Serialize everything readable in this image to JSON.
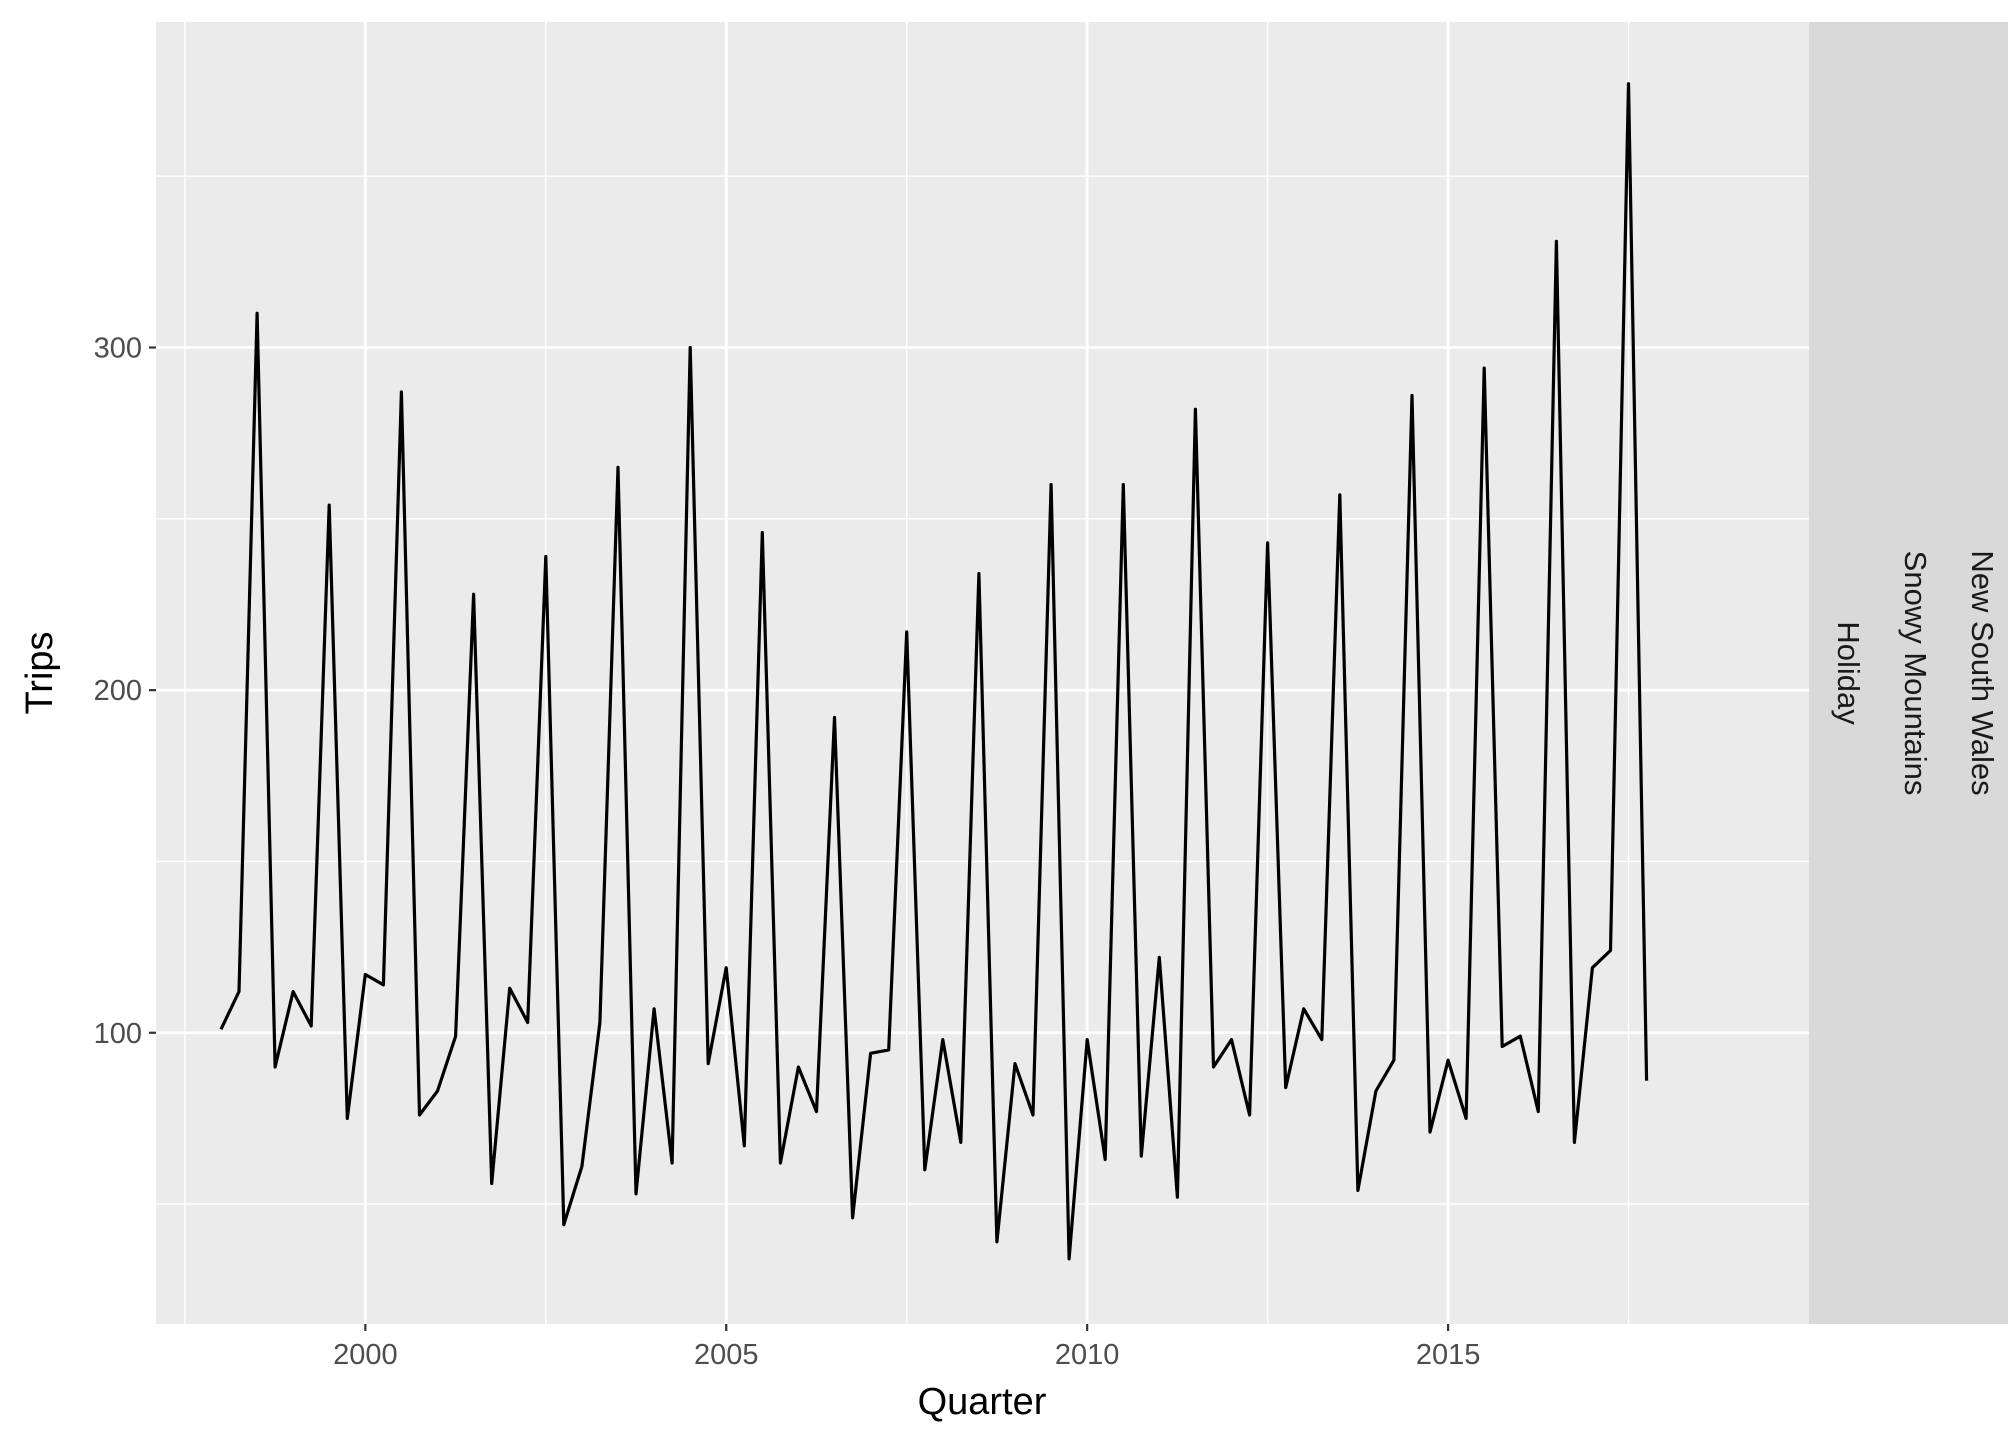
{
  "chart_data": {
    "type": "line",
    "xlabel": "Quarter",
    "ylabel": "Trips",
    "xlim": [
      1997.1,
      2020.0
    ],
    "ylim": [
      15,
      395
    ],
    "x_ticks": [
      2000,
      2005,
      2010,
      2015
    ],
    "y_ticks": [
      100,
      200,
      300
    ],
    "x_tick_labels": [
      "2000",
      "2005",
      "2010",
      "2015"
    ],
    "y_tick_labels": [
      "100",
      "200",
      "300"
    ],
    "grid": true,
    "facet_strip": [
      "New South Wales",
      "Snowy Mountains",
      "Holiday"
    ],
    "series": [
      {
        "x": [
          "1998 Q1",
          "1998 Q2",
          "1998 Q3",
          "1998 Q4",
          "1999 Q1",
          "1999 Q2",
          "1999 Q3",
          "1999 Q4",
          "2000 Q1",
          "2000 Q2",
          "2000 Q3",
          "2000 Q4",
          "2001 Q1",
          "2001 Q2",
          "2001 Q3",
          "2001 Q4",
          "2002 Q1",
          "2002 Q2",
          "2002 Q3",
          "2002 Q4",
          "2003 Q1",
          "2003 Q2",
          "2003 Q3",
          "2003 Q4",
          "2004 Q1",
          "2004 Q2",
          "2004 Q3",
          "2004 Q4",
          "2005 Q1",
          "2005 Q2",
          "2005 Q3",
          "2005 Q4",
          "2006 Q1",
          "2006 Q2",
          "2006 Q3",
          "2006 Q4",
          "2007 Q1",
          "2007 Q2",
          "2007 Q3",
          "2007 Q4",
          "2008 Q1",
          "2008 Q2",
          "2008 Q3",
          "2008 Q4",
          "2009 Q1",
          "2009 Q2",
          "2009 Q3",
          "2009 Q4",
          "2010 Q1",
          "2010 Q2",
          "2010 Q3",
          "2010 Q4",
          "2011 Q1",
          "2011 Q2",
          "2011 Q3",
          "2011 Q4",
          "2012 Q1",
          "2012 Q2",
          "2012 Q3",
          "2012 Q4",
          "2013 Q1",
          "2013 Q2",
          "2013 Q3",
          "2013 Q4",
          "2014 Q1",
          "2014 Q2",
          "2014 Q3",
          "2014 Q4",
          "2015 Q1",
          "2015 Q2",
          "2015 Q3",
          "2015 Q4",
          "2016 Q1",
          "2016 Q2",
          "2016 Q3",
          "2016 Q4",
          "2017 Q1",
          "2017 Q2",
          "2017 Q3",
          "2017 Q4"
        ],
        "values": [
          101,
          112,
          310,
          90,
          112,
          102,
          254,
          75,
          117,
          114,
          287,
          76,
          83,
          99,
          228,
          56,
          113,
          103,
          239,
          44,
          61,
          103,
          265,
          53,
          107,
          62,
          300,
          91,
          119,
          67,
          246,
          62,
          90,
          77,
          192,
          46,
          94,
          95,
          217,
          60,
          98,
          68,
          234,
          39,
          91,
          76,
          260,
          34,
          98,
          63,
          260,
          64,
          122,
          52,
          282,
          90,
          98,
          76,
          243,
          84,
          107,
          98,
          257,
          54,
          83,
          92,
          286,
          71,
          92,
          75,
          294,
          96,
          99,
          77,
          331,
          68,
          119,
          124,
          377,
          86
        ]
      }
    ]
  }
}
